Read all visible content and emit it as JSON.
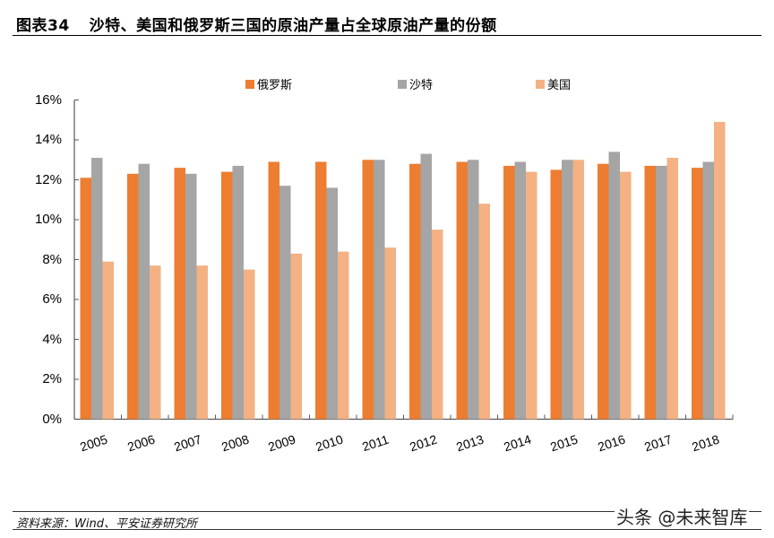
{
  "header": {
    "figure_label": "图表34",
    "title": "沙特、美国和俄罗斯三国的原油产量占全球原油产量的份额"
  },
  "footer": {
    "source": "资料来源：Wind、平安证券研究所",
    "watermark": "头条 @未来智库"
  },
  "colors": {
    "russia": "#ED7D31",
    "saudi": "#A5A5A5",
    "us": "#F4B183",
    "axis": "#595959"
  },
  "chart_data": {
    "type": "bar",
    "title": "沙特、美国和俄罗斯三国的原油产量占全球原油产量的份额",
    "xlabel": "",
    "ylabel": "",
    "categories": [
      "2005",
      "2006",
      "2007",
      "2008",
      "2009",
      "2010",
      "2011",
      "2012",
      "2013",
      "2014",
      "2015",
      "2016",
      "2017",
      "2018"
    ],
    "series": [
      {
        "name": "俄罗斯",
        "color": "#ED7D31",
        "values": [
          12.1,
          12.3,
          12.6,
          12.4,
          12.9,
          12.9,
          13.0,
          12.8,
          12.9,
          12.7,
          12.5,
          12.8,
          12.7,
          12.6
        ]
      },
      {
        "name": "沙特",
        "color": "#A5A5A5",
        "values": [
          13.1,
          12.8,
          12.3,
          12.7,
          11.7,
          11.6,
          13.0,
          13.3,
          13.0,
          12.9,
          13.0,
          13.4,
          12.7,
          12.9
        ]
      },
      {
        "name": "美国",
        "color": "#F4B183",
        "values": [
          7.9,
          7.7,
          7.7,
          7.5,
          8.3,
          8.4,
          8.6,
          9.5,
          10.8,
          12.4,
          13.0,
          12.4,
          13.1,
          14.9
        ]
      }
    ],
    "yticks": [
      "0%",
      "2%",
      "4%",
      "6%",
      "8%",
      "10%",
      "12%",
      "14%",
      "16%"
    ],
    "ylim": [
      0,
      16
    ],
    "grid": false,
    "legend_position": "top",
    "unit": "%"
  }
}
